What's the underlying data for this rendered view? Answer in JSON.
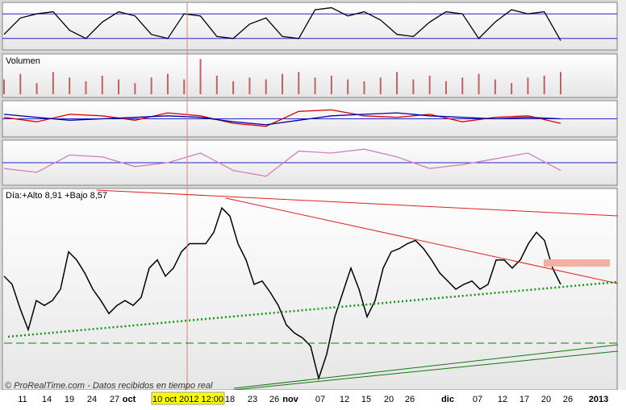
{
  "chart_data": [
    {
      "type": "line",
      "color": "#000000",
      "ylim": [
        0,
        100
      ],
      "hlines": [
        20,
        80
      ],
      "values": [
        30,
        70,
        80,
        85,
        40,
        20,
        60,
        85,
        75,
        30,
        20,
        80,
        75,
        25,
        20,
        55,
        70,
        25,
        20,
        90,
        95,
        75,
        85,
        65,
        30,
        25,
        60,
        85,
        80,
        20,
        60,
        90,
        80,
        85,
        15
      ]
    },
    {
      "type": "bar",
      "title": "Volumen",
      "color": "#c06060",
      "ylim": [
        0,
        100
      ],
      "values": [
        40,
        55,
        30,
        60,
        45,
        35,
        50,
        40,
        30,
        45,
        55,
        40,
        95,
        50,
        35,
        45,
        40,
        55,
        60,
        45,
        50,
        40,
        35,
        45,
        60,
        40,
        50,
        35,
        45,
        55,
        40,
        30,
        45,
        50,
        60
      ]
    },
    {
      "type": "line",
      "ylim": [
        -1,
        1
      ],
      "hlines": [
        0
      ],
      "series": [
        {
          "color": "#dd0000",
          "values": [
            0.1,
            -0.2,
            0.3,
            0.2,
            -0.1,
            0.4,
            0.2,
            -0.3,
            -0.5,
            0.5,
            0.6,
            0.2,
            0.1,
            0.3,
            -0.2,
            0.1,
            0.2,
            -0.3
          ]
        },
        {
          "color": "#0000aa",
          "values": [
            0.3,
            0.1,
            -0.1,
            0,
            0.1,
            0.2,
            0.1,
            -0.2,
            -0.4,
            -0.1,
            0.2,
            0.3,
            0.4,
            0.2,
            0.1,
            0,
            0.1,
            0
          ]
        }
      ]
    },
    {
      "type": "line",
      "ylim": [
        -1,
        1
      ],
      "hlines": [
        0
      ],
      "color": "#d080c0",
      "values": [
        -0.3,
        -0.5,
        0.4,
        0.3,
        -0.2,
        0,
        0.5,
        -0.4,
        -0.7,
        0.6,
        0.5,
        0.7,
        0.3,
        -0.3,
        -0.1,
        0.2,
        0.5,
        -0.4
      ]
    },
    {
      "type": "line",
      "title": "Día:+Alto 8,91 +Bajo 8,57",
      "color": "#000000",
      "ylim": [
        7.8,
        9.0
      ],
      "values": [
        8.48,
        8.43,
        8.28,
        8.15,
        8.33,
        8.3,
        8.33,
        8.4,
        8.63,
        8.58,
        8.5,
        8.4,
        8.33,
        8.25,
        8.3,
        8.33,
        8.3,
        8.35,
        8.53,
        8.58,
        8.48,
        8.53,
        8.63,
        8.68,
        8.68,
        8.68,
        8.75,
        8.9,
        8.85,
        8.68,
        8.58,
        8.43,
        8.45,
        8.38,
        8.3,
        8.18,
        8.13,
        8.1,
        8.05,
        7.85,
        8.0,
        8.23,
        8.38,
        8.53,
        8.4,
        8.23,
        8.33,
        8.53,
        8.63,
        8.65,
        8.68,
        8.7,
        8.65,
        8.58,
        8.5,
        8.45,
        8.4,
        8.43,
        8.45,
        8.4,
        8.43,
        8.58,
        8.58,
        8.53,
        8.58,
        8.68,
        8.75,
        8.7,
        8.53,
        8.43
      ]
    }
  ],
  "x_axis": {
    "labels": [
      "11",
      "14",
      "19",
      "24",
      "27",
      "oct",
      "10 oct 2012 12:00",
      "18",
      "23",
      "26",
      "nov",
      "07",
      "12",
      "15",
      "20",
      "26",
      "dic",
      "07",
      "12",
      "17",
      "20",
      "26",
      "2013"
    ]
  },
  "footer": "© ProRealTime.com - Datos recibidos en tiempo real"
}
